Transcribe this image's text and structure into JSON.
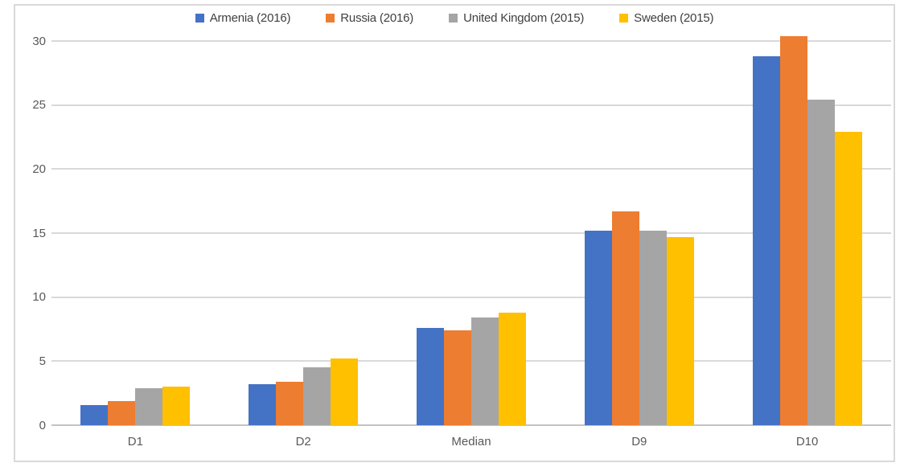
{
  "chart_data": {
    "type": "bar",
    "title": "",
    "xlabel": "",
    "ylabel": "",
    "categories": [
      "D1",
      "D2",
      "Median",
      "D9",
      "D10"
    ],
    "series": [
      {
        "name": "Armenia (2016)",
        "color": "#4472C4",
        "values": [
          1.6,
          3.2,
          7.6,
          15.2,
          28.8
        ]
      },
      {
        "name": "Russia (2016)",
        "color": "#ED7D31",
        "values": [
          1.9,
          3.4,
          7.4,
          16.7,
          30.4
        ]
      },
      {
        "name": "United Kingdom (2015)",
        "color": "#A5A5A5",
        "values": [
          2.9,
          4.5,
          8.4,
          15.2,
          25.4
        ]
      },
      {
        "name": "Sweden (2015)",
        "color": "#FFC000",
        "values": [
          3.0,
          5.2,
          8.8,
          14.7,
          22.9
        ]
      }
    ],
    "ylim": [
      0,
      30
    ],
    "yticks": [
      0,
      5,
      10,
      15,
      20,
      25,
      30
    ],
    "grid": true,
    "legend_position": "top",
    "colors": {
      "gridline": "#D9D9D9",
      "zero_line": "#C3C3C3",
      "frame_border": "#D9D9D9",
      "axis_text": "#595959",
      "legend_text": "#3F3F3F",
      "background": "#FFFFFF"
    }
  }
}
